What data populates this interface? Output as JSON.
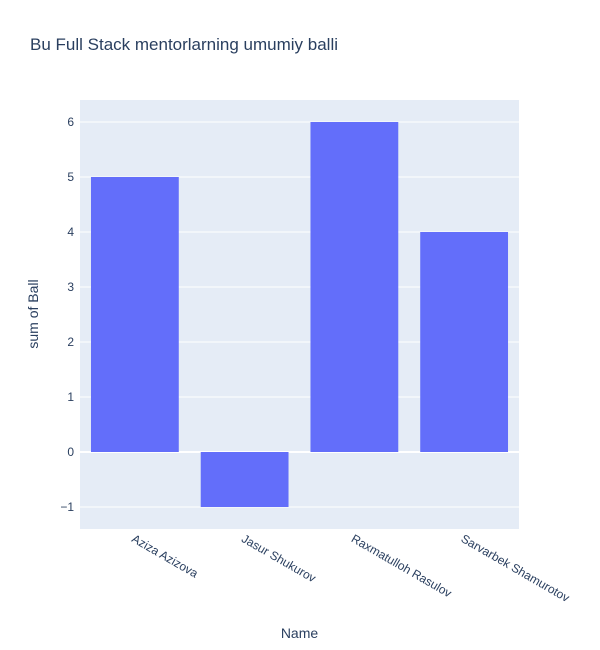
{
  "chart_data": {
    "type": "bar",
    "title": "Bu Full Stack mentorlarning umumiy balli",
    "xlabel": "Name",
    "ylabel": "sum of Ball",
    "categories": [
      "Aziza Azizova",
      "Jasur Shukurov",
      "Raxmatulloh Rasulov",
      "Sarvarbek Shamurotov"
    ],
    "values": [
      5,
      -1,
      6,
      4
    ],
    "yticks": [
      -1,
      0,
      1,
      2,
      3,
      4,
      5,
      6
    ],
    "ytick_labels": [
      "−1",
      "0",
      "1",
      "2",
      "3",
      "4",
      "5",
      "6"
    ],
    "ylim": [
      -1.4,
      6.4
    ],
    "grid": true,
    "colors": {
      "bar": "#636efa",
      "plot_bg": "#e5ecf6",
      "grid": "#ffffff",
      "text": "#2a3f5f"
    }
  }
}
